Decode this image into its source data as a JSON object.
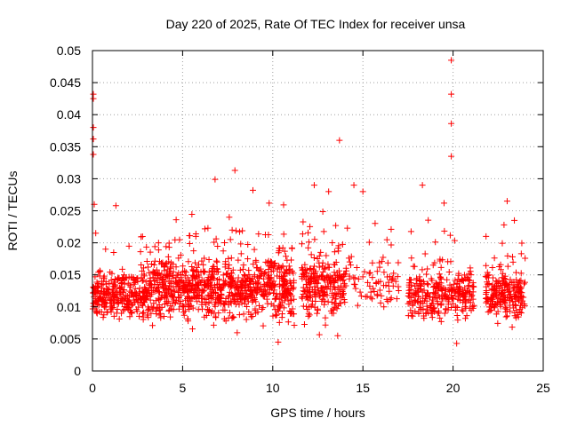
{
  "chart_data": {
    "type": "scatter",
    "title": "Day 220 of 2025, Rate Of TEC Index for receiver unsa",
    "xlabel": "GPS time / hours",
    "ylabel": "ROTI / TECUs",
    "xlim": [
      0,
      25
    ],
    "ylim": [
      0,
      0.05
    ],
    "xticks": [
      0,
      5,
      10,
      15,
      20,
      25
    ],
    "xtick_labels": [
      "0",
      "5",
      "10",
      "15",
      "20",
      "25"
    ],
    "yticks": [
      0,
      0.005,
      0.01,
      0.015,
      0.02,
      0.025,
      0.03,
      0.035,
      0.04,
      0.045,
      0.05
    ],
    "ytick_labels": [
      "0",
      "0.005",
      "0.01",
      "0.015",
      "0.02",
      "0.025",
      "0.03",
      "0.035",
      "0.04",
      "0.045",
      "0.05"
    ],
    "grid": true,
    "marker": "+",
    "marker_color": "#ff0000",
    "series": [
      {
        "name": "ROTI",
        "density_segments": [
          {
            "x": [
              0.0,
              3.0
            ],
            "y_center": 0.012,
            "y_spread": 0.004,
            "count": 300
          },
          {
            "x": [
              3.0,
              11.2
            ],
            "y_center": 0.013,
            "y_spread": 0.005,
            "count": 900
          },
          {
            "x": [
              11.6,
              14.0
            ],
            "y_center": 0.013,
            "y_spread": 0.005,
            "count": 240
          },
          {
            "x": [
              14.0,
              17.0
            ],
            "y_center": 0.014,
            "y_spread": 0.004,
            "count": 80
          },
          {
            "x": [
              17.5,
              21.2
            ],
            "y_center": 0.012,
            "y_spread": 0.004,
            "count": 300
          },
          {
            "x": [
              21.8,
              24.0
            ],
            "y_center": 0.012,
            "y_spread": 0.004,
            "count": 220
          }
        ],
        "notable_points": [
          {
            "x": 0.05,
            "y": 0.0432
          },
          {
            "x": 0.05,
            "y": 0.0425
          },
          {
            "x": 0.05,
            "y": 0.038
          },
          {
            "x": 0.05,
            "y": 0.0362
          },
          {
            "x": 0.05,
            "y": 0.0338
          },
          {
            "x": 0.1,
            "y": 0.026
          },
          {
            "x": 1.3,
            "y": 0.0258
          },
          {
            "x": 6.8,
            "y": 0.0299
          },
          {
            "x": 7.9,
            "y": 0.0313
          },
          {
            "x": 8.9,
            "y": 0.0282
          },
          {
            "x": 9.8,
            "y": 0.0262
          },
          {
            "x": 12.3,
            "y": 0.029
          },
          {
            "x": 13.1,
            "y": 0.028
          },
          {
            "x": 13.7,
            "y": 0.036
          },
          {
            "x": 14.5,
            "y": 0.029
          },
          {
            "x": 15.0,
            "y": 0.028
          },
          {
            "x": 18.3,
            "y": 0.029
          },
          {
            "x": 19.9,
            "y": 0.0485
          },
          {
            "x": 19.9,
            "y": 0.0432
          },
          {
            "x": 19.9,
            "y": 0.0386
          },
          {
            "x": 19.9,
            "y": 0.0335
          },
          {
            "x": 19.5,
            "y": 0.0262
          },
          {
            "x": 20.2,
            "y": 0.0043
          },
          {
            "x": 23.0,
            "y": 0.0265
          },
          {
            "x": 23.4,
            "y": 0.0235
          },
          {
            "x": 13.6,
            "y": 0.0055
          },
          {
            "x": 10.3,
            "y": 0.0045
          }
        ]
      }
    ]
  }
}
